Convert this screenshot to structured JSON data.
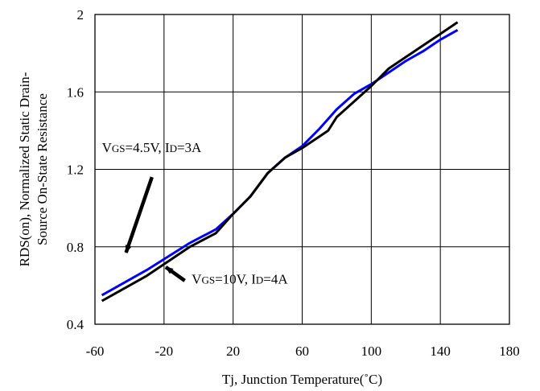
{
  "chart_data": {
    "type": "line",
    "xlabel": "Tj, Junction Temperature(˚C)",
    "ylabel_line1": "RDS(on), Normalized Static Drain-",
    "ylabel_line2": "Source On-State Resistance",
    "xlim": [
      -60,
      180
    ],
    "ylim": [
      0.4,
      2
    ],
    "x_ticks": [
      "-60",
      "-20",
      "20",
      "60",
      "100",
      "140",
      "180"
    ],
    "y_ticks": [
      "0.4",
      "0.8",
      "1.2",
      "1.6",
      "2"
    ],
    "grid": true,
    "series": [
      {
        "name": "VGS=4.5V, ID=3A",
        "color": "#0000ff",
        "x": [
          -56,
          -30,
          -5,
          10,
          20,
          30,
          40,
          50,
          60,
          70,
          80,
          90,
          100,
          110,
          120,
          130,
          140,
          150
        ],
        "y": [
          0.55,
          0.68,
          0.82,
          0.89,
          0.97,
          1.06,
          1.18,
          1.26,
          1.32,
          1.41,
          1.51,
          1.59,
          1.64,
          1.7,
          1.76,
          1.81,
          1.87,
          1.92
        ]
      },
      {
        "name": "VGS=10V, ID=4A",
        "color": "#000000",
        "x": [
          -56,
          -30,
          -5,
          10,
          20,
          30,
          40,
          50,
          60,
          70,
          75,
          80,
          90,
          100,
          110,
          120,
          130,
          140,
          150
        ],
        "y": [
          0.52,
          0.65,
          0.8,
          0.87,
          0.97,
          1.06,
          1.18,
          1.26,
          1.31,
          1.37,
          1.4,
          1.47,
          1.55,
          1.63,
          1.72,
          1.78,
          1.84,
          1.9,
          1.96
        ]
      }
    ],
    "annotations": [
      {
        "prefix": "V",
        "prefix_sub": "GS",
        "mid": "=4.5V, I",
        "mid_sub": "D",
        "suffix": "=3A",
        "label_at": [
          -56,
          1.29
        ],
        "arrow_from": [
          -27,
          1.16
        ],
        "arrow_to": [
          -42,
          0.77
        ]
      },
      {
        "prefix": "V",
        "prefix_sub": "GS",
        "mid": "=10V, I",
        "mid_sub": "D",
        "suffix": "=4A",
        "label_at": [
          -4,
          0.61
        ],
        "arrow_from": [
          -8,
          0.625
        ],
        "arrow_to": [
          -19,
          0.695
        ]
      }
    ]
  }
}
